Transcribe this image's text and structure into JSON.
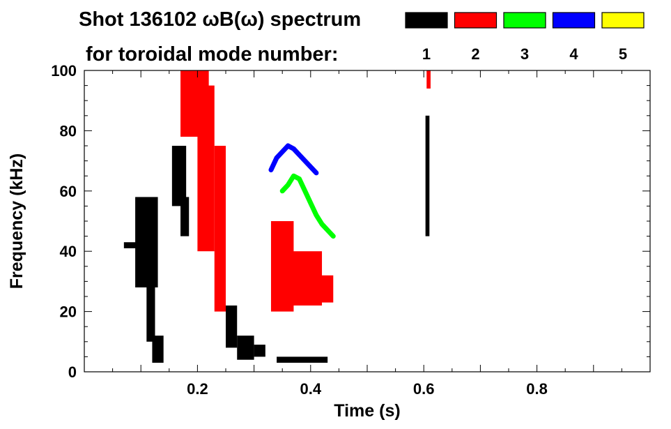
{
  "chart_data": {
    "type": "heatmap",
    "title_line1": "Shot 136102 ωB(ω) spectrum",
    "title_line2": "for toroidal mode number:",
    "xlabel": "Time (s)",
    "ylabel": "Frequency (kHz)",
    "xlim": [
      0,
      1.0
    ],
    "ylim": [
      0,
      100
    ],
    "x_ticks": [
      0.2,
      0.4,
      0.6,
      0.8
    ],
    "y_ticks": [
      0,
      20,
      40,
      60,
      80,
      100
    ],
    "grid": false,
    "legend_position": "top-right",
    "legend": [
      {
        "mode": "1",
        "color": "#000000"
      },
      {
        "mode": "2",
        "color": "#ff0000"
      },
      {
        "mode": "3",
        "color": "#00ff00"
      },
      {
        "mode": "4",
        "color": "#0000ff"
      },
      {
        "mode": "5",
        "color": "#ffff00"
      }
    ],
    "series": [
      {
        "mode": "1",
        "color": "#000000",
        "regions": [
          {
            "t0": 0.07,
            "t1": 0.095,
            "f0": 41,
            "f1": 43
          },
          {
            "t0": 0.09,
            "t1": 0.13,
            "f0": 28,
            "f1": 58
          },
          {
            "t0": 0.11,
            "t1": 0.125,
            "f0": 10,
            "f1": 30
          },
          {
            "t0": 0.12,
            "t1": 0.14,
            "f0": 3,
            "f1": 12
          },
          {
            "t0": 0.155,
            "t1": 0.18,
            "f0": 55,
            "f1": 75
          },
          {
            "t0": 0.17,
            "t1": 0.185,
            "f0": 45,
            "f1": 58
          },
          {
            "t0": 0.25,
            "t1": 0.27,
            "f0": 8,
            "f1": 22
          },
          {
            "t0": 0.27,
            "t1": 0.3,
            "f0": 4,
            "f1": 12
          },
          {
            "t0": 0.3,
            "t1": 0.32,
            "f0": 5,
            "f1": 9
          },
          {
            "t0": 0.34,
            "t1": 0.43,
            "f0": 3,
            "f1": 5
          },
          {
            "t0": 0.603,
            "t1": 0.61,
            "f0": 45,
            "f1": 85
          }
        ]
      },
      {
        "mode": "2",
        "color": "#ff0000",
        "regions": [
          {
            "t0": 0.17,
            "t1": 0.22,
            "f0": 78,
            "f1": 100
          },
          {
            "t0": 0.2,
            "t1": 0.23,
            "f0": 40,
            "f1": 95
          },
          {
            "t0": 0.23,
            "t1": 0.25,
            "f0": 20,
            "f1": 75
          },
          {
            "t0": 0.33,
            "t1": 0.37,
            "f0": 20,
            "f1": 50
          },
          {
            "t0": 0.36,
            "t1": 0.42,
            "f0": 22,
            "f1": 40
          },
          {
            "t0": 0.41,
            "t1": 0.44,
            "f0": 23,
            "f1": 32
          },
          {
            "t0": 0.605,
            "t1": 0.612,
            "f0": 94,
            "f1": 100
          }
        ]
      },
      {
        "mode": "3",
        "color": "#00ff00",
        "t": [
          0.35,
          0.36,
          0.37,
          0.38,
          0.39,
          0.4,
          0.41,
          0.42,
          0.43,
          0.44
        ],
        "f": [
          60,
          62,
          65,
          64,
          60,
          56,
          52,
          49,
          47,
          45
        ]
      },
      {
        "mode": "4",
        "color": "#0000ff",
        "t": [
          0.33,
          0.34,
          0.35,
          0.36,
          0.37,
          0.38,
          0.39,
          0.4,
          0.41
        ],
        "f": [
          67,
          71,
          73,
          75,
          74,
          72,
          70,
          68,
          66
        ]
      }
    ]
  }
}
